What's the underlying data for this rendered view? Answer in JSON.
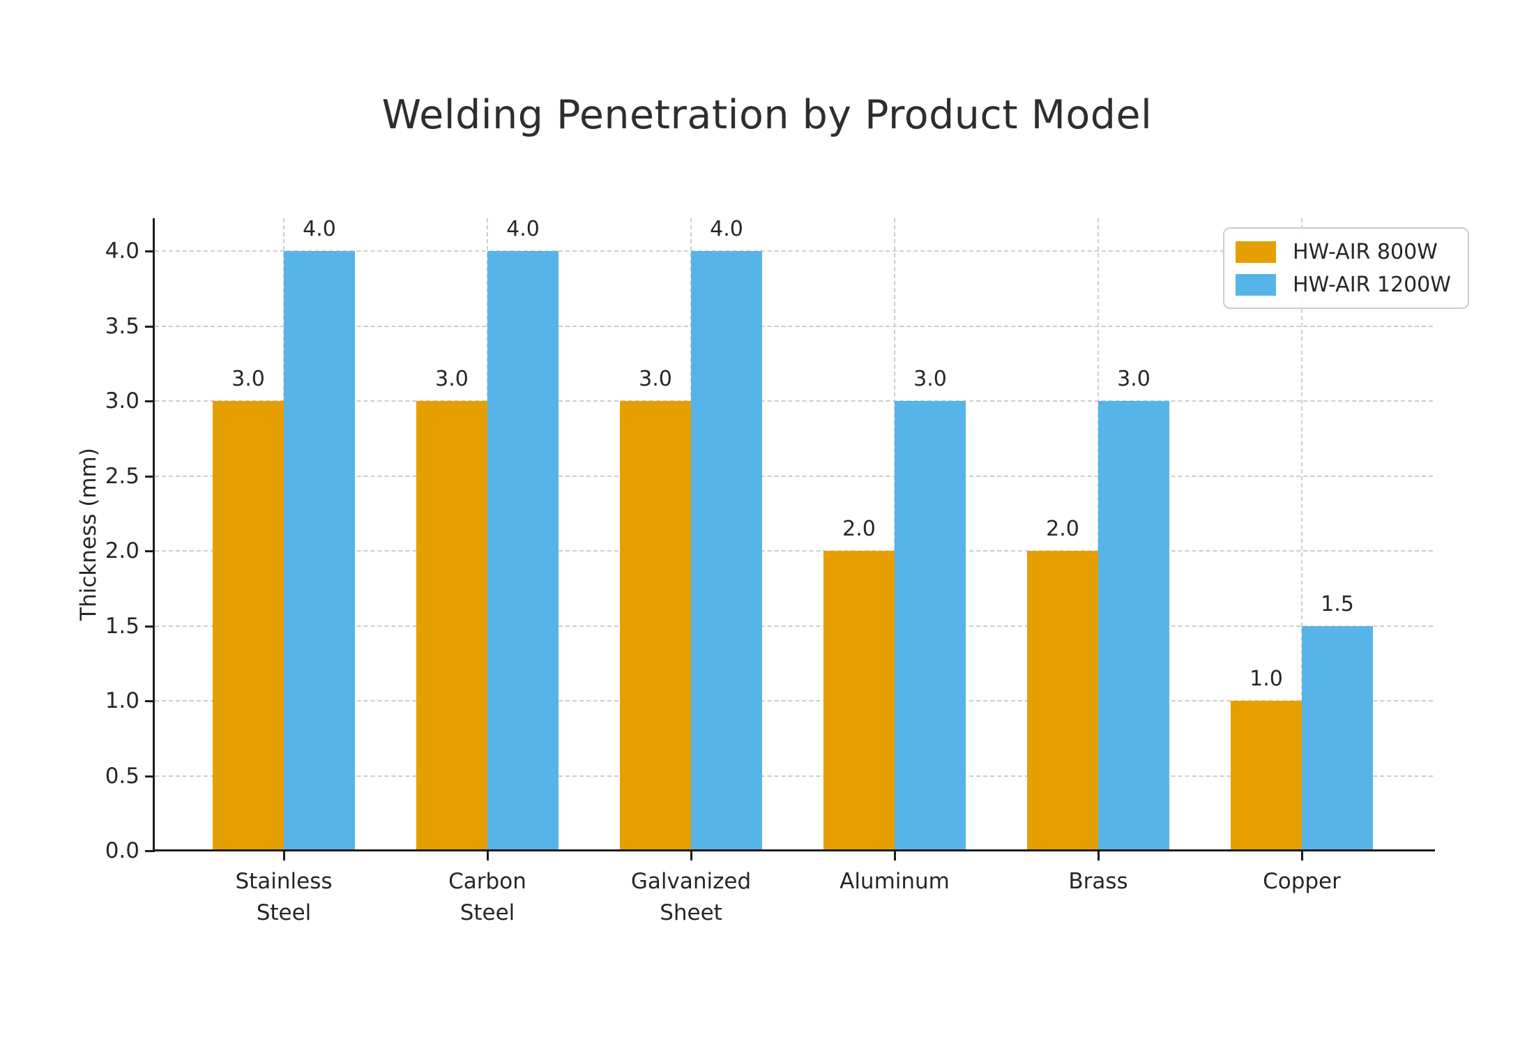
{
  "figure": {
    "background": "#ffffff"
  },
  "chart_data": {
    "type": "bar",
    "title": "Welding Penetration by Product Model",
    "xlabel": "",
    "ylabel": "Thickness (mm)",
    "categories": [
      "Stainless\nSteel",
      "Carbon\nSteel",
      "Galvanized\nSheet",
      "Aluminum",
      "Brass",
      "Copper"
    ],
    "series": [
      {
        "name": "HW-AIR 800W",
        "color": "#E69F00",
        "values": [
          3.0,
          3.0,
          3.0,
          2.0,
          2.0,
          1.0
        ]
      },
      {
        "name": "HW-AIR 1200W",
        "color": "#56B4E9",
        "values": [
          4.0,
          4.0,
          4.0,
          3.0,
          3.0,
          1.5
        ]
      }
    ],
    "bar_value_labels": [
      [
        "3.0",
        "3.0",
        "3.0",
        "2.0",
        "2.0",
        "1.0"
      ],
      [
        "4.0",
        "4.0",
        "4.0",
        "3.0",
        "3.0",
        "1.5"
      ]
    ],
    "yticks": [
      "0.0",
      "0.5",
      "1.0",
      "1.5",
      "2.0",
      "2.5",
      "3.0",
      "3.5",
      "4.0"
    ],
    "ylim": [
      0,
      4.22
    ],
    "grid": {
      "horizontal": true,
      "vertical": true,
      "style": "dashed",
      "color": "#cdcdcd"
    },
    "legend": {
      "position": "upper right",
      "entries": [
        "HW-AIR 800W",
        "HW-AIR 1200W"
      ]
    },
    "text_color": "#262626",
    "axis_color": "#1c1c1c"
  }
}
